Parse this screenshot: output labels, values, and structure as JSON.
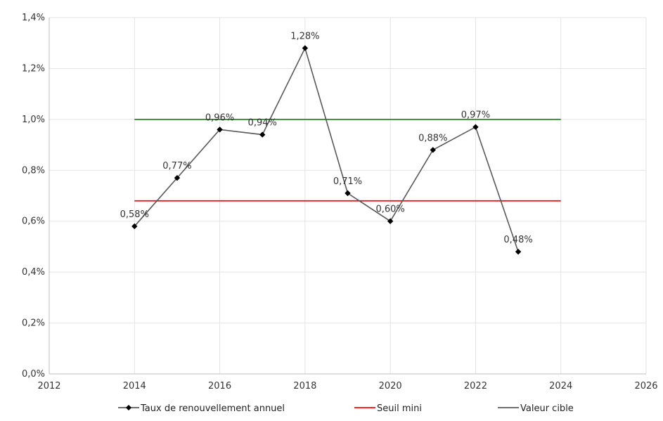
{
  "chart_data": {
    "type": "line",
    "x_ticks": [
      "2012",
      "2014",
      "2016",
      "2018",
      "2020",
      "2022",
      "2024",
      "2026"
    ],
    "y_ticks": [
      "0,0%",
      "0,2%",
      "0,4%",
      "0,6%",
      "0,8%",
      "1,0%",
      "1,2%",
      "1,4%"
    ],
    "xlim": [
      2012,
      2026
    ],
    "ylim": [
      0,
      1.4
    ],
    "grid": true,
    "legend_position": "bottom",
    "series": [
      {
        "name": "Taux de renouvellement annuel",
        "color": "#595959",
        "marker": "diamond",
        "x": [
          2014,
          2015,
          2016,
          2017,
          2018,
          2019,
          2020,
          2021,
          2022,
          2023
        ],
        "y": [
          0.58,
          0.77,
          0.96,
          0.94,
          1.28,
          0.71,
          0.6,
          0.88,
          0.97,
          0.48
        ],
        "labels": [
          "0,58%",
          "0,77%",
          "0,96%",
          "0,94%",
          "1,28%",
          "0,71%",
          "0,60%",
          "0,88%",
          "0,97%",
          "0,48%"
        ]
      },
      {
        "name": "Seuil mini",
        "color": "#ff0000",
        "x": [
          2014,
          2024
        ],
        "y": [
          0.68,
          0.68
        ]
      },
      {
        "name": "Valeur cible",
        "color": "#228b22",
        "legend_color": "#595959",
        "x": [
          2014,
          2024
        ],
        "y": [
          1.0,
          1.0
        ]
      }
    ]
  }
}
